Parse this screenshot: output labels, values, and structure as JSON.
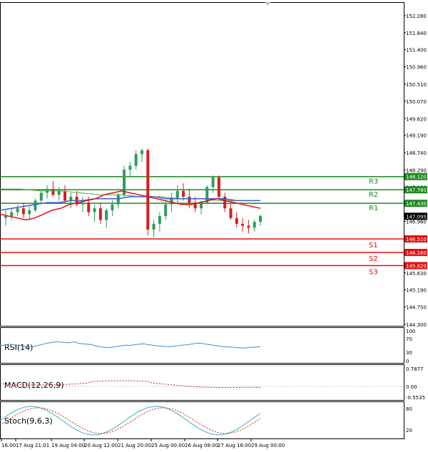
{
  "colors": {
    "background": "#ffffff",
    "frame": "#000000",
    "bull_candle": "#2e9e5b",
    "bear_candle": "#d21f1f",
    "resistance": "#1e8a1e",
    "support": "#e01010",
    "ma_fast": "#e01010",
    "ma_slow": "#3a5fd0",
    "ma_long": "#5aa05a",
    "rsi_line": "#3a8fd8",
    "macd_signal": "#d21f1f",
    "stoch_main": "#3ab0c8",
    "stoch_signal": "#d21f1f",
    "price_tag": "#000000"
  },
  "price_axis": {
    "labels": [
      "152.280",
      "151.840",
      "151.400",
      "150.960",
      "150.510",
      "150.070",
      "149.620",
      "149.190",
      "148.740",
      "148.290",
      "147.850",
      "146.960",
      "145.630",
      "145.190",
      "144.750",
      "144.300"
    ],
    "current_price": "147.095"
  },
  "levels": [
    {
      "name": "R3",
      "value": "148.120",
      "kind": "resistance"
    },
    {
      "name": "R2",
      "value": "147.780",
      "kind": "resistance"
    },
    {
      "name": "R1",
      "value": "147.430",
      "kind": "resistance"
    },
    {
      "name": "S1",
      "value": "146.510",
      "kind": "support"
    },
    {
      "name": "S2",
      "value": "146.160",
      "kind": "support"
    },
    {
      "name": "S3",
      "value": "145.820",
      "kind": "support"
    }
  ],
  "time_axis": [
    "16:00",
    "17 Aug 21:01",
    "19 Aug 04:00",
    "20 Aug 12:00",
    "21 Aug 20:00",
    "25 Aug 00:00",
    "26 Aug 08:00",
    "27 Aug 16:00",
    "29 Aug 00:00"
  ],
  "indicators": {
    "rsi": {
      "label": "RSI(14)",
      "ticks": [
        "100",
        "70",
        "30",
        "0"
      ]
    },
    "macd": {
      "label": "MACD(12,26,9)",
      "ticks": [
        "0.7877",
        "0.00",
        "-0.5535"
      ]
    },
    "stoch": {
      "label": "Stoch(9,6,3)",
      "ticks": [
        "80",
        "20"
      ]
    }
  },
  "chart_data": {
    "type": "candlestick",
    "ylim": [
      144.3,
      152.45
    ],
    "candles": [
      {
        "o": 147.05,
        "h": 147.25,
        "l": 146.85,
        "c": 147.1
      },
      {
        "o": 147.1,
        "h": 147.3,
        "l": 147.0,
        "c": 147.2
      },
      {
        "o": 147.2,
        "h": 147.4,
        "l": 147.1,
        "c": 147.3
      },
      {
        "o": 147.3,
        "h": 147.45,
        "l": 147.05,
        "c": 147.15
      },
      {
        "o": 147.15,
        "h": 147.35,
        "l": 147.0,
        "c": 147.25
      },
      {
        "o": 147.25,
        "h": 147.55,
        "l": 147.2,
        "c": 147.5
      },
      {
        "o": 147.5,
        "h": 147.75,
        "l": 147.4,
        "c": 147.7
      },
      {
        "o": 147.7,
        "h": 147.9,
        "l": 147.55,
        "c": 147.8
      },
      {
        "o": 147.8,
        "h": 148.0,
        "l": 147.6,
        "c": 147.65
      },
      {
        "o": 147.65,
        "h": 147.85,
        "l": 147.5,
        "c": 147.75
      },
      {
        "o": 147.75,
        "h": 147.9,
        "l": 147.45,
        "c": 147.5
      },
      {
        "o": 147.5,
        "h": 147.7,
        "l": 147.3,
        "c": 147.6
      },
      {
        "o": 147.6,
        "h": 147.75,
        "l": 147.35,
        "c": 147.4
      },
      {
        "o": 147.4,
        "h": 147.6,
        "l": 147.2,
        "c": 147.45
      },
      {
        "o": 147.45,
        "h": 147.6,
        "l": 147.1,
        "c": 147.2
      },
      {
        "o": 147.2,
        "h": 147.4,
        "l": 146.95,
        "c": 147.3
      },
      {
        "o": 147.3,
        "h": 147.45,
        "l": 146.9,
        "c": 147.0
      },
      {
        "o": 147.0,
        "h": 147.3,
        "l": 146.8,
        "c": 147.25
      },
      {
        "o": 147.25,
        "h": 147.5,
        "l": 147.1,
        "c": 147.4
      },
      {
        "o": 147.4,
        "h": 147.7,
        "l": 147.3,
        "c": 147.65
      },
      {
        "o": 147.65,
        "h": 148.4,
        "l": 147.6,
        "c": 148.3
      },
      {
        "o": 148.3,
        "h": 148.5,
        "l": 148.1,
        "c": 148.4
      },
      {
        "o": 148.4,
        "h": 148.8,
        "l": 148.3,
        "c": 148.7
      },
      {
        "o": 148.7,
        "h": 148.85,
        "l": 148.5,
        "c": 148.8
      },
      {
        "o": 148.8,
        "h": 148.85,
        "l": 146.6,
        "c": 146.75
      },
      {
        "o": 146.75,
        "h": 147.0,
        "l": 146.55,
        "c": 146.9
      },
      {
        "o": 146.9,
        "h": 147.2,
        "l": 146.7,
        "c": 147.1
      },
      {
        "o": 147.1,
        "h": 147.5,
        "l": 147.0,
        "c": 147.4
      },
      {
        "o": 147.4,
        "h": 147.7,
        "l": 147.2,
        "c": 147.55
      },
      {
        "o": 147.55,
        "h": 147.9,
        "l": 147.4,
        "c": 147.75
      },
      {
        "o": 147.75,
        "h": 147.95,
        "l": 147.5,
        "c": 147.6
      },
      {
        "o": 147.6,
        "h": 147.8,
        "l": 147.3,
        "c": 147.45
      },
      {
        "o": 147.45,
        "h": 147.6,
        "l": 147.2,
        "c": 147.3
      },
      {
        "o": 147.3,
        "h": 147.5,
        "l": 147.15,
        "c": 147.45
      },
      {
        "o": 147.45,
        "h": 147.9,
        "l": 147.4,
        "c": 147.85
      },
      {
        "o": 147.85,
        "h": 148.15,
        "l": 147.7,
        "c": 148.1
      },
      {
        "o": 148.1,
        "h": 148.15,
        "l": 147.55,
        "c": 147.6
      },
      {
        "o": 147.6,
        "h": 147.7,
        "l": 147.2,
        "c": 147.3
      },
      {
        "o": 147.3,
        "h": 147.45,
        "l": 147.0,
        "c": 147.05
      },
      {
        "o": 147.05,
        "h": 147.2,
        "l": 146.8,
        "c": 146.9
      },
      {
        "o": 146.9,
        "h": 147.05,
        "l": 146.7,
        "c": 146.85
      },
      {
        "o": 146.85,
        "h": 147.0,
        "l": 146.65,
        "c": 146.8
      },
      {
        "o": 146.8,
        "h": 147.0,
        "l": 146.7,
        "c": 146.95
      },
      {
        "o": 146.95,
        "h": 147.15,
        "l": 146.85,
        "c": 147.1
      }
    ],
    "ma_fast": [
      147.15,
      147.1,
      147.05,
      147.0,
      147.05,
      147.15,
      147.25,
      147.3,
      147.4,
      147.45,
      147.5,
      147.55,
      147.65,
      147.7,
      147.75,
      147.7,
      147.65,
      147.6,
      147.55,
      147.5,
      147.45,
      147.4,
      147.4,
      147.45,
      147.5,
      147.55,
      147.5,
      147.45,
      147.4,
      147.35,
      147.3
    ],
    "ma_slow": [
      147.25,
      147.3,
      147.35,
      147.4,
      147.45,
      147.45,
      147.5,
      147.5,
      147.55,
      147.55,
      147.55,
      147.6,
      147.6,
      147.6,
      147.55,
      147.55,
      147.55,
      147.55,
      147.55,
      147.55,
      147.5,
      147.5,
      147.5
    ],
    "ma_long": [
      147.8,
      147.8,
      147.75,
      147.75,
      147.7,
      147.65,
      147.65,
      147.6,
      147.6,
      147.55,
      147.55,
      147.5,
      147.5,
      147.5
    ],
    "rsi": [
      50,
      52,
      55,
      53,
      51,
      50,
      48,
      47,
      49,
      52,
      55,
      58,
      60,
      62,
      61,
      60,
      59,
      62,
      58,
      56,
      55,
      54,
      50,
      47,
      45,
      44,
      46,
      48,
      50,
      52,
      51,
      53,
      55,
      56,
      54,
      52,
      50,
      49,
      48,
      47,
      49,
      50,
      52,
      53,
      55,
      57,
      58,
      56,
      54,
      52,
      50,
      48,
      47,
      46,
      45,
      44,
      43,
      44,
      45,
      46,
      47
    ]
  }
}
